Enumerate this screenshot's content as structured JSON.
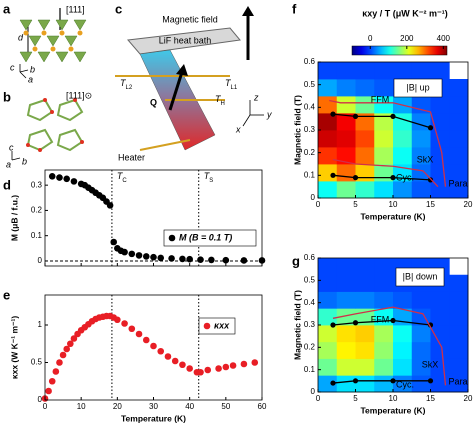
{
  "panel_labels": [
    "a",
    "b",
    "c",
    "d",
    "e",
    "f",
    "g"
  ],
  "diagram_a": {
    "direction": "[111]",
    "spacing": "d",
    "axes": [
      "c",
      "b",
      "a"
    ]
  },
  "diagram_b": {
    "direction": "[111]⊙",
    "axes": [
      "c",
      "a",
      "b"
    ]
  },
  "diagram_c": {
    "field": "Magnetic field",
    "bath": "LiF heat bath",
    "heat": "Q",
    "heater": "Heater",
    "thermometers": [
      {
        "symbol": "T",
        "sub": "L2"
      },
      {
        "symbol": "T",
        "sub": "L1"
      },
      {
        "symbol": "T",
        "sub": "H"
      }
    ],
    "axes": [
      "z",
      "y",
      "x"
    ]
  },
  "chart_data": [
    {
      "type": "scatter",
      "xlim": [
        0,
        60
      ],
      "xticks": [
        0,
        10,
        20,
        30,
        40,
        50,
        60
      ],
      "xtick_labels": false,
      "ylim": [
        -0.02,
        0.36
      ],
      "yticks": [
        0,
        0.1,
        0.2,
        0.3
      ],
      "ylabel": "M (μB / f.u.)",
      "zero_line": 0,
      "vlines": [
        {
          "value": 18.5,
          "symbol": "T",
          "sub": "C"
        },
        {
          "value": 42.5,
          "symbol": "T",
          "sub": "S"
        }
      ],
      "x": [
        2,
        4,
        6,
        8,
        10,
        11,
        12,
        13,
        14,
        15,
        16,
        17,
        18,
        19,
        20,
        21,
        22,
        24,
        26,
        28,
        30,
        32,
        35,
        38,
        40,
        43,
        46,
        50,
        55,
        60
      ],
      "series": [
        {
          "name": "M (B = 0.1 T)",
          "color": "#000000",
          "values": [
            0.335,
            0.33,
            0.325,
            0.315,
            0.305,
            0.3,
            0.29,
            0.28,
            0.27,
            0.26,
            0.25,
            0.235,
            0.22,
            0.075,
            0.05,
            0.04,
            0.035,
            0.028,
            0.022,
            0.018,
            0.015,
            0.012,
            0.01,
            0.008,
            0.007,
            0.005,
            0.004,
            0.003,
            0.002,
            0.002
          ]
        }
      ]
    },
    {
      "type": "scatter",
      "xlim": [
        0,
        60
      ],
      "xticks": [
        0,
        10,
        20,
        30,
        40,
        50,
        60
      ],
      "xlabel": "Temperature (K)",
      "ylim": [
        0,
        1.4
      ],
      "yticks": [
        0,
        0.5,
        1
      ],
      "ylabel": "κxx (W K⁻¹ m⁻¹)",
      "vlines": [
        {
          "value": 18.5
        },
        {
          "value": 42.5
        }
      ],
      "x": [
        0,
        1,
        2,
        3,
        4,
        5,
        6,
        7,
        8,
        9,
        10,
        11,
        12,
        13,
        14,
        15,
        16,
        17,
        18,
        19,
        20,
        22,
        24,
        26,
        28,
        30,
        32,
        34,
        36,
        38,
        40,
        42,
        43,
        45,
        48,
        50,
        52,
        55,
        58
      ],
      "series": [
        {
          "name": "κxx",
          "color": "#e81e25",
          "values": [
            0.02,
            0.12,
            0.25,
            0.38,
            0.5,
            0.6,
            0.68,
            0.75,
            0.82,
            0.88,
            0.93,
            0.97,
            1.01,
            1.05,
            1.08,
            1.1,
            1.11,
            1.12,
            1.12,
            1.1,
            1.07,
            1.02,
            0.95,
            0.88,
            0.8,
            0.72,
            0.65,
            0.58,
            0.52,
            0.47,
            0.42,
            0.37,
            0.37,
            0.4,
            0.42,
            0.44,
            0.46,
            0.48,
            0.5
          ]
        }
      ]
    },
    {
      "type": "heatmap",
      "title": "|B| up",
      "xlim": [
        0,
        20
      ],
      "xticks": [
        0,
        5,
        10,
        15,
        20
      ],
      "xlabel": "Temperature (K)",
      "ylim": [
        0,
        0.6
      ],
      "yticks": [
        0,
        0.1,
        0.2,
        0.3,
        0.4,
        0.5,
        0.6
      ],
      "ylabel": "Magnetic field (T)",
      "clim": [
        -100,
        420
      ],
      "colorbar": {
        "title": "κxy / T (μW K⁻² m⁻¹)",
        "ticks": [
          0,
          200,
          400
        ]
      },
      "annotations": [
        "FFM",
        "SkX",
        "Cyc.",
        "Para"
      ],
      "x": [
        1.25,
        3.75,
        6.25,
        8.75,
        11.25,
        13.75,
        16.25,
        18.75
      ],
      "y": [
        0.0375,
        0.1125,
        0.1875,
        0.2625,
        0.3375,
        0.4125,
        0.4875,
        0.5625
      ],
      "z": [
        [
          100,
          150,
          120,
          80,
          40,
          10,
          0,
          0
        ],
        [
          250,
          300,
          250,
          150,
          80,
          20,
          0,
          0
        ],
        [
          330,
          350,
          300,
          180,
          100,
          30,
          0,
          0
        ],
        [
          380,
          370,
          320,
          200,
          120,
          40,
          0,
          0
        ],
        [
          400,
          360,
          300,
          190,
          110,
          30,
          0,
          0
        ],
        [
          300,
          200,
          150,
          100,
          50,
          10,
          0,
          0
        ],
        [
          50,
          30,
          20,
          10,
          0,
          0,
          0,
          0
        ],
        [
          0,
          0,
          0,
          0,
          0,
          0,
          0,
          null
        ]
      ],
      "lines": [
        {
          "color": "#000000",
          "markers": true,
          "x": [
            2,
            5,
            10,
            15
          ],
          "y": [
            0.37,
            0.36,
            0.36,
            0.31
          ]
        },
        {
          "color": "#000000",
          "markers": true,
          "x": [
            2,
            5,
            10,
            15
          ],
          "y": [
            0.1,
            0.09,
            0.09,
            0.08
          ]
        },
        {
          "color": "#d0304a",
          "markers": false,
          "x": [
            1.5,
            3,
            10,
            15,
            16.5,
            17
          ],
          "y": [
            0.43,
            0.42,
            0.42,
            0.38,
            0.2,
            0.05
          ]
        },
        {
          "color": "#d0304a",
          "markers": false,
          "x": [
            2,
            5,
            10,
            14,
            16
          ],
          "y": [
            0.17,
            0.15,
            0.14,
            0.12,
            0.05
          ]
        }
      ]
    },
    {
      "type": "heatmap",
      "title": "|B| down",
      "xlim": [
        0,
        20
      ],
      "xticks": [
        0,
        5,
        10,
        15,
        20
      ],
      "xlabel": "Temperature (K)",
      "ylim": [
        0,
        0.6
      ],
      "yticks": [
        0,
        0.1,
        0.2,
        0.3,
        0.4,
        0.5,
        0.6
      ],
      "ylabel": "Magnetic field (T)",
      "clim": [
        -100,
        420
      ],
      "annotations": [
        "FFM",
        "SkX",
        "Cyc.",
        "Para"
      ],
      "x": [
        1.25,
        3.75,
        6.25,
        8.75,
        11.25,
        13.75,
        16.25,
        18.75
      ],
      "y": [
        0.0375,
        0.1125,
        0.1875,
        0.2625,
        0.3375,
        0.4125,
        0.4875,
        0.5625
      ],
      "z": [
        [
          50,
          80,
          80,
          60,
          30,
          10,
          0,
          0
        ],
        [
          150,
          200,
          200,
          150,
          80,
          20,
          0,
          0
        ],
        [
          180,
          230,
          240,
          170,
          90,
          20,
          0,
          0
        ],
        [
          200,
          240,
          250,
          180,
          100,
          30,
          0,
          0
        ],
        [
          120,
          150,
          150,
          100,
          50,
          10,
          0,
          0
        ],
        [
          20,
          30,
          30,
          20,
          10,
          0,
          0,
          0
        ],
        [
          0,
          0,
          0,
          0,
          0,
          0,
          0,
          0
        ],
        [
          0,
          0,
          0,
          0,
          0,
          0,
          0,
          null
        ]
      ],
      "lines": [
        {
          "color": "#000000",
          "markers": true,
          "x": [
            2,
            5,
            10,
            15
          ],
          "y": [
            0.3,
            0.31,
            0.32,
            0.3
          ]
        },
        {
          "color": "#000000",
          "markers": true,
          "x": [
            2,
            5,
            10,
            15
          ],
          "y": [
            0.04,
            0.05,
            0.05,
            0.05
          ]
        },
        {
          "color": "#d0304a",
          "markers": false,
          "x": [
            2,
            5,
            10,
            14,
            16.5,
            17
          ],
          "y": [
            0.33,
            0.35,
            0.38,
            0.35,
            0.2,
            0.03
          ]
        }
      ]
    }
  ]
}
